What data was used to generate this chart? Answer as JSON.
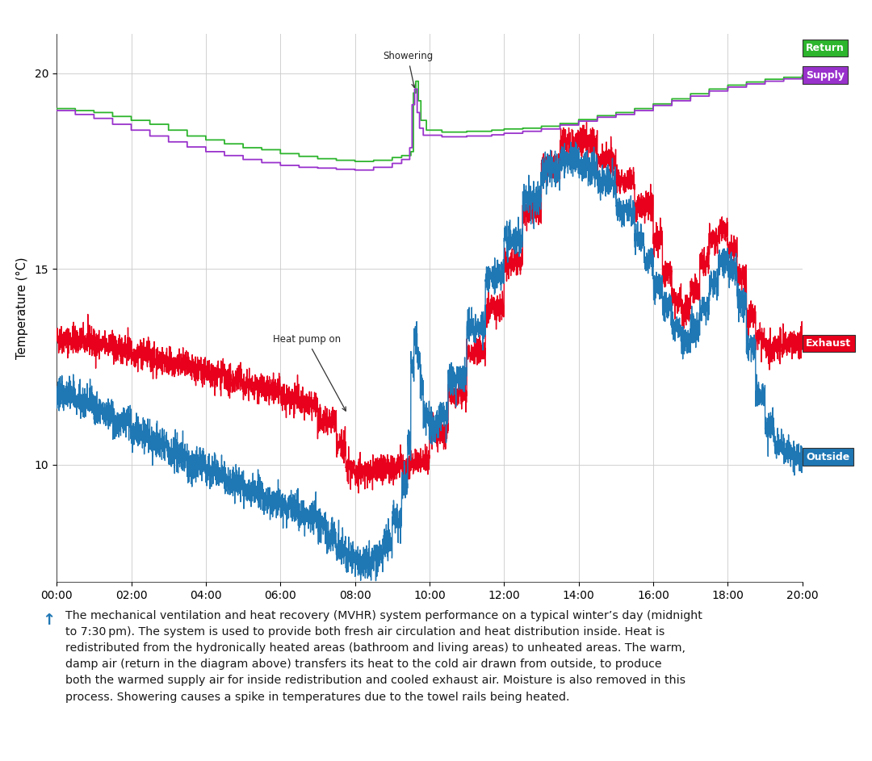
{
  "ylabel": "Temperature (°C)",
  "xlim": [
    0,
    1200
  ],
  "ylim": [
    7.0,
    21.0
  ],
  "yticks": [
    10,
    15,
    20
  ],
  "xtick_labels": [
    "00:00",
    "02:00",
    "04:00",
    "06:00",
    "08:00",
    "10:00",
    "12:00",
    "14:00",
    "16:00",
    "18:00",
    "20:00"
  ],
  "xtick_positions": [
    0,
    120,
    240,
    360,
    480,
    600,
    720,
    840,
    960,
    1080,
    1200
  ],
  "return_color": "#2db52d",
  "supply_color": "#9932cc",
  "exhaust_color": "#e8001c",
  "outside_color": "#1f77b4",
  "background_color": "#ffffff",
  "grid_color": "#cccccc",
  "arrow_color": "#333333",
  "caption": "The mechanical ventilation and heat recovery (MVHR) system performance on a typical winter’s day (midnight\nto 7:30 pm). The system is used to provide both fresh air circulation and heat distribution inside. Heat is\nredistributed from the hydronically heated areas (bathroom and living areas) to unheated areas. The warm,\ndamp air (return in the diagram above) transfers its heat to the cold air drawn from outside, to produce\nboth the warmed supply air for inside redistribution and cooled exhaust air. Moisture is also removed in this\nprocess. Showering causes a spike in temperatures due to the towel rails being heated."
}
